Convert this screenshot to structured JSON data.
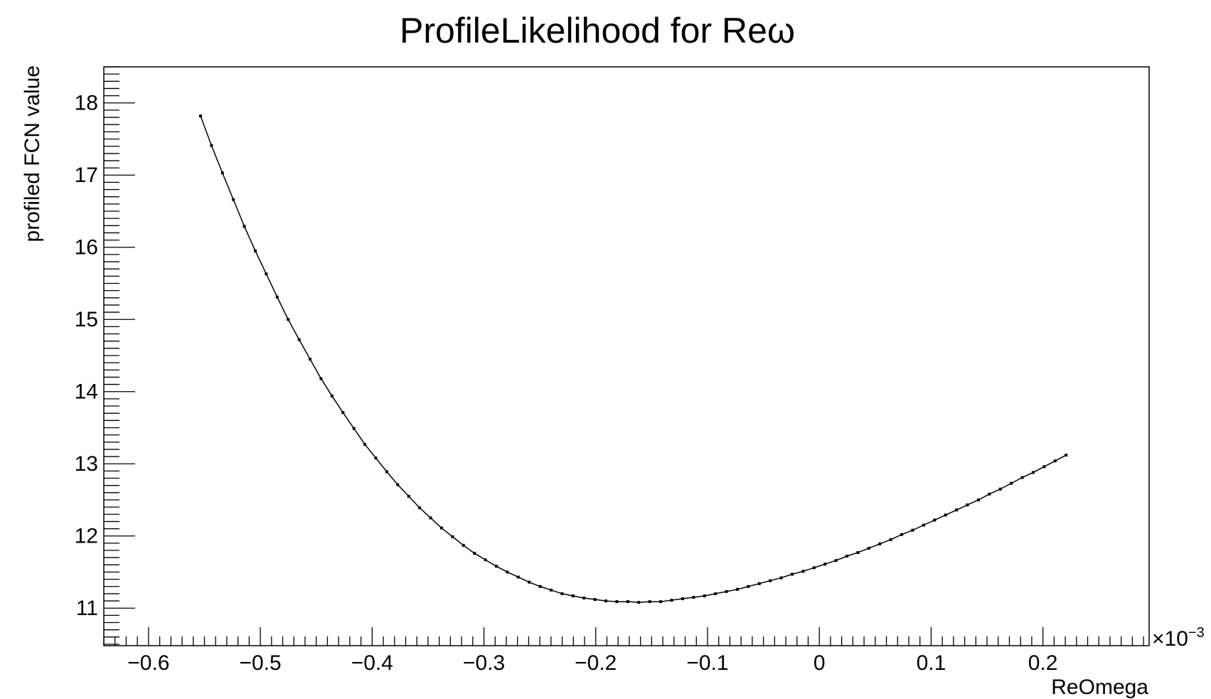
{
  "chart_data": {
    "type": "line",
    "title_prefix": "ProfileLikelihood for Re",
    "title_symbol": "ω",
    "xlabel": "ReOmega",
    "ylabel": "profiled FCN value",
    "x_exponent_base": "×10",
    "x_exponent_power": "−3",
    "xlim": [
      -0.64,
      0.295
    ],
    "ylim": [
      10.48,
      18.5
    ],
    "xticks": [
      {
        "value": -0.6,
        "label": "−0.6"
      },
      {
        "value": -0.5,
        "label": "−0.5"
      },
      {
        "value": -0.4,
        "label": "−0.4"
      },
      {
        "value": -0.3,
        "label": "−0.3"
      },
      {
        "value": -0.2,
        "label": "−0.2"
      },
      {
        "value": -0.1,
        "label": "−0.1"
      },
      {
        "value": 0,
        "label": "0"
      },
      {
        "value": 0.1,
        "label": "0.1"
      },
      {
        "value": 0.2,
        "label": "0.2"
      }
    ],
    "yticks": [
      {
        "value": 11,
        "label": "11"
      },
      {
        "value": 12,
        "label": "12"
      },
      {
        "value": 13,
        "label": "13"
      },
      {
        "value": 14,
        "label": "14"
      },
      {
        "value": 15,
        "label": "15"
      },
      {
        "value": 16,
        "label": "16"
      },
      {
        "value": 17,
        "label": "17"
      },
      {
        "value": 18,
        "label": "18"
      }
    ],
    "grid": false,
    "series": [
      {
        "color": "#000000",
        "x": [
          -0.5535,
          -0.5437,
          -0.5339,
          -0.5241,
          -0.5143,
          -0.5045,
          -0.4947,
          -0.4849,
          -0.4751,
          -0.4653,
          -0.4555,
          -0.4457,
          -0.4359,
          -0.4261,
          -0.4163,
          -0.4065,
          -0.3967,
          -0.3869,
          -0.3771,
          -0.3673,
          -0.3575,
          -0.3477,
          -0.3379,
          -0.3281,
          -0.3183,
          -0.3085,
          -0.2987,
          -0.2889,
          -0.2791,
          -0.2693,
          -0.2595,
          -0.2497,
          -0.2399,
          -0.2301,
          -0.2203,
          -0.2105,
          -0.2007,
          -0.1909,
          -0.1811,
          -0.1713,
          -0.1615,
          -0.1517,
          -0.1419,
          -0.1321,
          -0.1223,
          -0.1125,
          -0.1027,
          -0.0929,
          -0.0831,
          -0.0733,
          -0.0635,
          -0.0537,
          -0.0439,
          -0.0341,
          -0.0243,
          -0.0145,
          -0.0047,
          0.0051,
          0.0149,
          0.0247,
          0.0345,
          0.0443,
          0.0541,
          0.0639,
          0.0737,
          0.0835,
          0.0933,
          0.1031,
          0.1129,
          0.1227,
          0.1325,
          0.1423,
          0.1521,
          0.1619,
          0.1717,
          0.1815,
          0.1913,
          0.2011,
          0.2109,
          0.2207
        ],
        "y": [
          17.82,
          17.41,
          17.03,
          16.66,
          16.29,
          15.95,
          15.63,
          15.31,
          15.0,
          14.72,
          14.45,
          14.18,
          13.94,
          13.71,
          13.49,
          13.27,
          13.08,
          12.89,
          12.71,
          12.55,
          12.39,
          12.25,
          12.11,
          11.99,
          11.87,
          11.76,
          11.67,
          11.58,
          11.5,
          11.43,
          11.36,
          11.3,
          11.25,
          11.2,
          11.17,
          11.14,
          11.12,
          11.1,
          11.09,
          11.09,
          11.08,
          11.09,
          11.09,
          11.11,
          11.13,
          11.15,
          11.17,
          11.2,
          11.23,
          11.26,
          11.3,
          11.34,
          11.38,
          11.42,
          11.47,
          11.51,
          11.56,
          11.61,
          11.66,
          11.72,
          11.77,
          11.83,
          11.89,
          11.95,
          12.02,
          12.08,
          12.15,
          12.22,
          12.29,
          12.36,
          12.43,
          12.5,
          12.58,
          12.65,
          12.73,
          12.81,
          12.88,
          12.96,
          13.04,
          13.12
        ]
      }
    ]
  }
}
